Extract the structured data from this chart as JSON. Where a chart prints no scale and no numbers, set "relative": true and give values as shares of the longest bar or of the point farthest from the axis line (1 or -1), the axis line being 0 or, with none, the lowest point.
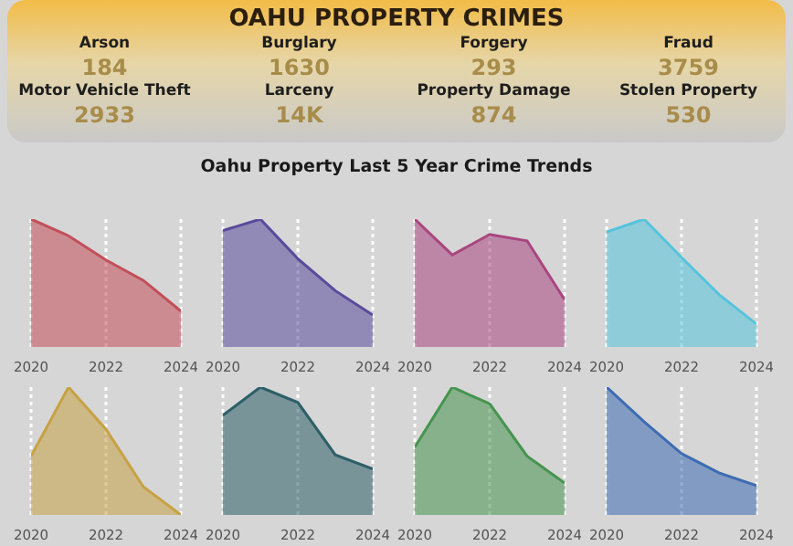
{
  "chart_data": [
    {
      "type": "other",
      "title": "OAHU PROPERTY CRIMES",
      "annotations": [
        "Arson",
        "184",
        "Burglary",
        "1630",
        "Forgery",
        "293",
        "Fraud",
        "3759",
        "Motor Vehicle Theft",
        "2933",
        "Larceny",
        "14K",
        "Property Damage",
        "874",
        "Stolen Property",
        "530"
      ]
    },
    {
      "type": "other",
      "title": "Oahu Property Last 5 Year Crime Trends"
    },
    {
      "type": "area",
      "relative": true,
      "x": [
        2020,
        2021,
        2022,
        2023,
        2024
      ],
      "xlim": [
        2020,
        2024
      ],
      "xticks": [
        2020,
        2022,
        2024
      ],
      "grid": "x",
      "series": [
        {
          "color": "#c24f5a",
          "values": [
            1,
            0.87,
            0.68,
            0.52,
            0.28
          ]
        }
      ]
    },
    {
      "type": "area",
      "relative": true,
      "x": [
        2020,
        2021,
        2022,
        2023,
        2024
      ],
      "xlim": [
        2020,
        2024
      ],
      "xticks": [
        2020,
        2022,
        2024
      ],
      "grid": "x",
      "series": [
        {
          "color": "#5a4a9c",
          "values": [
            0.91,
            1,
            0.69,
            0.44,
            0.25
          ]
        }
      ]
    },
    {
      "type": "area",
      "relative": true,
      "x": [
        2020,
        2021,
        2022,
        2023,
        2024
      ],
      "xlim": [
        2020,
        2024
      ],
      "xticks": [
        2020,
        2022,
        2024
      ],
      "grid": "x",
      "series": [
        {
          "color": "#a9457f",
          "values": [
            1,
            0.72,
            0.88,
            0.83,
            0.37
          ]
        }
      ]
    },
    {
      "type": "area",
      "relative": true,
      "x": [
        2020,
        2021,
        2022,
        2023,
        2024
      ],
      "xlim": [
        2020,
        2024
      ],
      "xticks": [
        2020,
        2022,
        2024
      ],
      "grid": "x",
      "series": [
        {
          "color": "#55c4dc",
          "values": [
            0.9,
            1,
            0.7,
            0.41,
            0.18
          ]
        }
      ]
    },
    {
      "type": "area",
      "relative": true,
      "x": [
        2020,
        2021,
        2022,
        2023,
        2024
      ],
      "xlim": [
        2020,
        2024
      ],
      "xticks": [
        2020,
        2022,
        2024
      ],
      "grid": "x",
      "series": [
        {
          "color": "#c7a244",
          "values": [
            0.46,
            1,
            0.67,
            0.22,
            0
          ]
        }
      ]
    },
    {
      "type": "area",
      "relative": true,
      "x": [
        2020,
        2021,
        2022,
        2023,
        2024
      ],
      "xlim": [
        2020,
        2024
      ],
      "xticks": [
        2020,
        2022,
        2024
      ],
      "grid": "x",
      "series": [
        {
          "color": "#2d5f68",
          "values": [
            0.78,
            1,
            0.88,
            0.47,
            0.36
          ]
        }
      ]
    },
    {
      "type": "area",
      "relative": true,
      "x": [
        2020,
        2021,
        2022,
        2023,
        2024
      ],
      "xlim": [
        2020,
        2024
      ],
      "xticks": [
        2020,
        2022,
        2024
      ],
      "grid": "x",
      "series": [
        {
          "color": "#45944f",
          "values": [
            0.53,
            1,
            0.87,
            0.46,
            0.25
          ]
        }
      ]
    },
    {
      "type": "area",
      "relative": true,
      "x": [
        2020,
        2021,
        2022,
        2023,
        2024
      ],
      "xlim": [
        2020,
        2024
      ],
      "xticks": [
        2020,
        2022,
        2024
      ],
      "grid": "x",
      "series": [
        {
          "color": "#3d6cb2",
          "values": [
            1,
            0.73,
            0.48,
            0.33,
            0.23
          ]
        }
      ]
    }
  ]
}
